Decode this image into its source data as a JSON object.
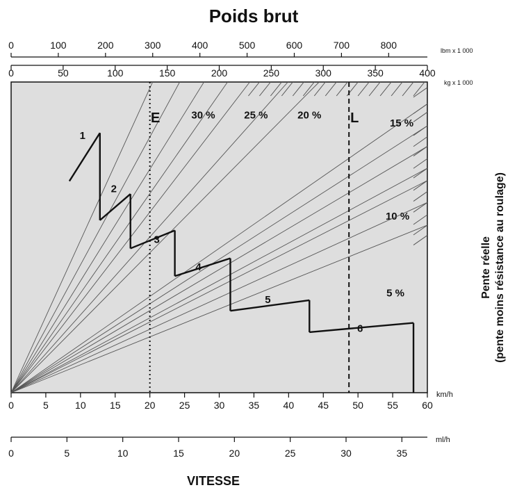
{
  "chart_data": {
    "type": "line",
    "title": "Poids brut",
    "xlabel": "VITESSE",
    "ylabel_line1": "Pente réelle",
    "ylabel_line2": "(pente moins résistance au roulage)",
    "axes": {
      "kmh": {
        "unit": "km/h",
        "range": [
          0,
          60
        ],
        "ticks": [
          0,
          5,
          10,
          15,
          20,
          25,
          30,
          35,
          40,
          45,
          50,
          55,
          60
        ]
      },
      "mph": {
        "unit": "ml/h",
        "range": [
          0,
          37.28
        ],
        "ticks": [
          0,
          5,
          10,
          15,
          20,
          25,
          30,
          35
        ]
      },
      "lbm": {
        "unit": "lbm x 1 000",
        "range": [
          0,
          882
        ],
        "ticks": [
          0,
          100,
          200,
          300,
          400,
          500,
          600,
          700,
          800
        ]
      },
      "kg": {
        "unit": "kg x 1 000",
        "range": [
          0,
          400
        ],
        "ticks": [
          0,
          50,
          100,
          150,
          200,
          250,
          300,
          350,
          400
        ]
      }
    },
    "grade_lines": [
      {
        "label": "30 %",
        "end": [
          27.8,
          0
        ]
      },
      {
        "label": "25 %",
        "end": [
          34.4,
          0
        ]
      },
      {
        "label": "20 %",
        "end": [
          44.4,
          0
        ]
      },
      {
        "label": "15 %",
        "end": [
          60,
          0.8
        ]
      },
      {
        "label": "10 %",
        "end": [
          60,
          2.35
        ]
      },
      {
        "label": "5 %",
        "end": [
          60,
          3.6
        ]
      },
      {
        "label": "",
        "end": [
          60,
          5.23
        ]
      },
      {
        "label": "",
        "end": [
          60,
          4.4
        ]
      },
      {
        "label": "",
        "end": [
          60,
          3.15
        ]
      },
      {
        "label": "",
        "end": [
          60,
          1.6
        ]
      },
      {
        "label": "",
        "end": [
          39.9,
          0
        ]
      },
      {
        "label": "",
        "end": [
          31.2,
          0
        ]
      },
      {
        "label": "",
        "end": [
          24.3,
          0
        ]
      },
      {
        "label": "",
        "end": [
          20.4,
          0
        ]
      }
    ],
    "gears": [
      {
        "name": "1",
        "points": [
          [
            8.4,
            3.62
          ],
          [
            12.8,
            1.86
          ]
        ]
      },
      {
        "name": "2",
        "points": [
          [
            12.8,
            5.05
          ],
          [
            17.2,
            4.09
          ]
        ]
      },
      {
        "name": "3",
        "points": [
          [
            17.2,
            6.08
          ],
          [
            23.6,
            5.42
          ]
        ]
      },
      {
        "name": "4",
        "points": [
          [
            23.6,
            7.09
          ],
          [
            31.6,
            6.44
          ]
        ]
      },
      {
        "name": "5",
        "points": [
          [
            31.6,
            8.36
          ],
          [
            43.0,
            7.97
          ]
        ]
      },
      {
        "name": "6",
        "points": [
          [
            43.0,
            9.14
          ],
          [
            58.0,
            8.8
          ]
        ]
      }
    ],
    "gear_drops": [
      [
        12.8,
        1.86,
        5.05
      ],
      [
        17.2,
        4.09,
        6.08
      ],
      [
        23.6,
        5.42,
        7.09
      ],
      [
        31.6,
        6.44,
        8.36
      ],
      [
        43.0,
        7.97,
        9.14
      ],
      [
        58.0,
        8.8,
        11.35
      ]
    ],
    "markers": [
      {
        "label": "E",
        "x": 20,
        "style": "dotted"
      },
      {
        "label": "L",
        "x": 48.7,
        "style": "dashed"
      }
    ],
    "right_ticks_y": [
      0.2,
      0.8,
      1.1,
      1.6,
      2.0,
      2.35,
      2.8,
      3.15,
      3.6,
      4.0,
      4.4,
      4.85,
      5.23,
      5.6
    ],
    "right_ticks_x": [
      34.8,
      36.4,
      38.0,
      39.6,
      41.2,
      42.7,
      44.3,
      45.9,
      47.5,
      49.0,
      50.6,
      52.2,
      53.8,
      55.4,
      57.0,
      58.6
    ],
    "colors": {
      "plot_bg": "#dedede",
      "line": "#111111",
      "grade": "#555555"
    }
  }
}
